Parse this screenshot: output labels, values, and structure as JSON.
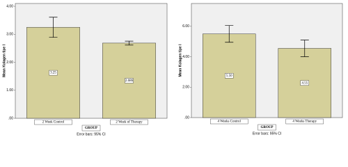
{
  "chart_data": [
    {
      "type": "bar",
      "ylabel": "Mean Kolagen tipe I",
      "xlabel": "GROUP",
      "note": "Error bars: 95% CI",
      "categories": [
        "2 Week Control",
        "2 Week of Therapy"
      ],
      "values": [
        3.25,
        2.686
      ],
      "value_labels": [
        "3.25",
        "2.686"
      ],
      "errors": [
        0.36,
        0.07
      ],
      "color": "#d5d09a",
      "ylim": [
        0,
        4.1
      ],
      "yticks": [
        {
          "value": 0,
          "label": ".00"
        },
        {
          "value": 1,
          "label": "1.00"
        },
        {
          "value": 2,
          "label": "2.00"
        },
        {
          "value": 3,
          "label": "3.00"
        },
        {
          "value": 4,
          "label": "4.00"
        }
      ]
    },
    {
      "type": "bar",
      "ylabel": "Mean Kolagen tipe I",
      "xlabel": "GROUP",
      "note": "Error bars: 95% CI",
      "categories": [
        "4 Weeks Control",
        "4 Weeks Therapy"
      ],
      "values": [
        5.5,
        4.55
      ],
      "value_labels": [
        "5.50",
        "4.55"
      ],
      "errors": [
        0.55,
        0.55
      ],
      "color": "#d5d09a",
      "ylim": [
        0,
        7.5
      ],
      "yticks": [
        {
          "value": 0,
          "label": ".00"
        },
        {
          "value": 2,
          "label": "2.00"
        },
        {
          "value": 4,
          "label": "4.00"
        },
        {
          "value": 6,
          "label": "6.00"
        }
      ]
    }
  ]
}
